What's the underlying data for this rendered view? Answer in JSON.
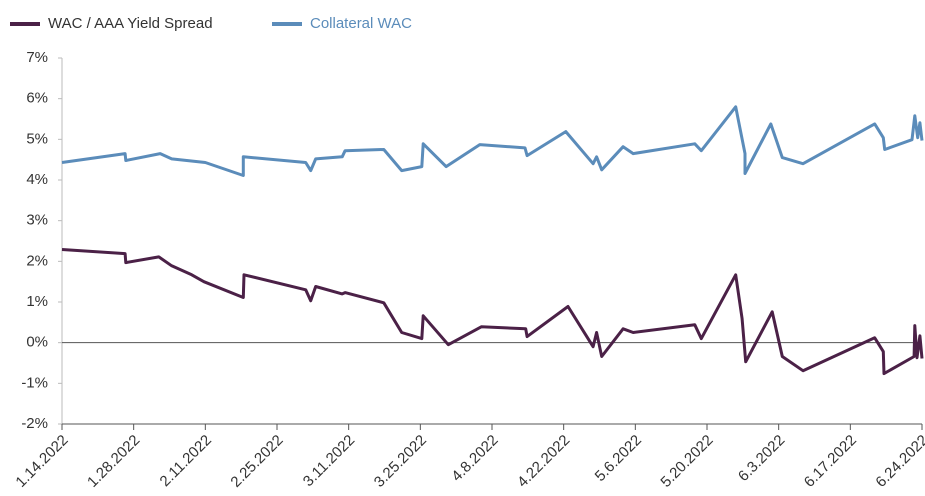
{
  "chart_data": {
    "type": "line",
    "xlim": [
      0,
      12
    ],
    "xticks": [
      {
        "value": 0,
        "label": "1.14.2022"
      },
      {
        "value": 1,
        "label": "1.28.2022"
      },
      {
        "value": 2,
        "label": "2.11.2022"
      },
      {
        "value": 3,
        "label": "2.25.2022"
      },
      {
        "value": 4,
        "label": "3.11.2022"
      },
      {
        "value": 5,
        "label": "3.25.2022"
      },
      {
        "value": 6,
        "label": "4.8.2022"
      },
      {
        "value": 7,
        "label": "4.22.2022"
      },
      {
        "value": 8,
        "label": "5.6.2022"
      },
      {
        "value": 9,
        "label": "5.20.2022"
      },
      {
        "value": 10,
        "label": "6.3.2022"
      },
      {
        "value": 11,
        "label": "6.17.2022"
      },
      {
        "value": 12,
        "label": "6.24.2022"
      }
    ],
    "ylim": [
      -2,
      7
    ],
    "yticks": [
      {
        "value": -2,
        "label": "-2%"
      },
      {
        "value": -1,
        "label": "-1%"
      },
      {
        "value": 0,
        "label": "0%"
      },
      {
        "value": 1,
        "label": "1%"
      },
      {
        "value": 2,
        "label": "2%"
      },
      {
        "value": 3,
        "label": "3%"
      },
      {
        "value": 4,
        "label": "4%"
      },
      {
        "value": 5,
        "label": "5%"
      },
      {
        "value": 6,
        "label": "6%"
      },
      {
        "value": 7,
        "label": "7%"
      }
    ],
    "grid": false,
    "legend": "top-left",
    "series": [
      {
        "name": "WAC / AAA Yield Spread",
        "color": "#4b2147",
        "x": [
          0,
          0.88,
          0.89,
          1.35,
          1.53,
          1.81,
          1.98,
          2.53,
          2.54,
          3.4,
          3.47,
          3.54,
          3.91,
          3.95,
          4.49,
          4.74,
          5.02,
          5.04,
          5.39,
          5.85,
          6.47,
          6.49,
          7.06,
          7.41,
          7.46,
          7.53,
          7.83,
          7.97,
          8.83,
          8.92,
          9.4,
          9.49,
          9.54,
          9.91,
          10.05,
          10.34,
          11.34,
          11.46,
          11.47,
          11.89,
          11.9,
          11.93,
          11.97,
          12
        ],
        "values": [
          2.29,
          2.19,
          1.97,
          2.11,
          1.89,
          1.67,
          1.5,
          1.11,
          1.67,
          1.3,
          1.03,
          1.38,
          1.2,
          1.23,
          0.98,
          0.25,
          0.1,
          0.66,
          -0.05,
          0.39,
          0.34,
          0.15,
          0.89,
          -0.1,
          0.25,
          -0.34,
          0.34,
          0.25,
          0.44,
          0.1,
          1.67,
          0.59,
          -0.47,
          0.76,
          -0.34,
          -0.69,
          0.12,
          -0.22,
          -0.76,
          -0.34,
          0.42,
          -0.37,
          0.17,
          -0.39
        ]
      },
      {
        "name": "Collateral WAC",
        "color": "#5b8cba",
        "x": [
          0,
          0.88,
          0.89,
          1.37,
          1.53,
          2.0,
          2.53,
          2.53,
          3.4,
          3.47,
          3.54,
          3.91,
          3.95,
          4.49,
          4.74,
          5.02,
          5.04,
          5.36,
          5.83,
          6.46,
          6.49,
          7.03,
          7.41,
          7.46,
          7.53,
          7.83,
          7.97,
          8.83,
          8.92,
          9.4,
          9.53,
          9.53,
          9.89,
          10.05,
          10.34,
          11.34,
          11.46,
          11.48,
          11.86,
          11.9,
          11.94,
          11.97,
          12
        ],
        "values": [
          4.43,
          4.65,
          4.48,
          4.65,
          4.52,
          4.43,
          4.11,
          4.57,
          4.43,
          4.23,
          4.52,
          4.57,
          4.72,
          4.75,
          4.23,
          4.33,
          4.89,
          4.33,
          4.87,
          4.79,
          4.6,
          5.19,
          4.4,
          4.57,
          4.25,
          4.82,
          4.65,
          4.89,
          4.72,
          5.8,
          4.65,
          4.16,
          5.38,
          4.55,
          4.4,
          5.38,
          5.04,
          4.75,
          4.99,
          5.58,
          5.04,
          5.41,
          4.97
        ]
      }
    ]
  }
}
